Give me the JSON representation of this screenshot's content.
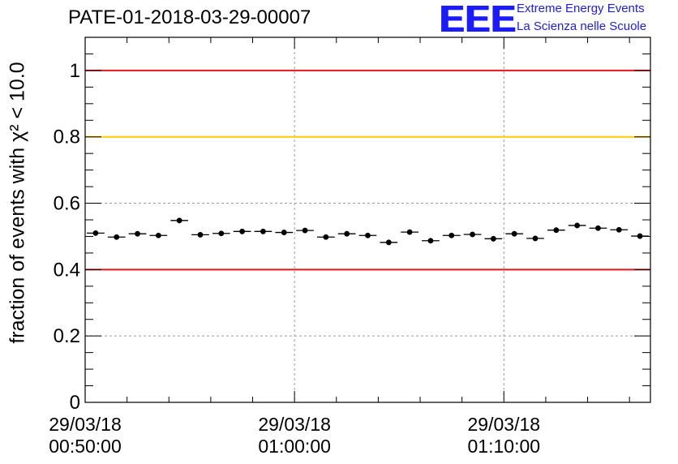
{
  "logo": {
    "mark": "EEE",
    "line1": "Extreme Energy Events",
    "line2": "La Scienza nelle Scuole"
  },
  "colors": {
    "red_line": "#e8141c",
    "yellow_line": "#ffcc00",
    "logo_blue": "#1b1bff",
    "grid": "#9a9a9a"
  },
  "chart_data": {
    "type": "scatter",
    "title": "PATE-01-2018-03-29-00007",
    "ylabel": "fraction of events with χ² < 10.0",
    "xlabel": "",
    "ylim": [
      0,
      1.1
    ],
    "y_ticks": [
      "0",
      "0.2",
      "0.4",
      "0.6",
      "0.8",
      "1"
    ],
    "y_tick_values": [
      0,
      0.2,
      0.4,
      0.6,
      0.8,
      1.0
    ],
    "x_range_minutes": [
      0,
      27
    ],
    "x_major_ticks": [
      {
        "minute": 0,
        "date": "29/03/18",
        "time": "00:50:00"
      },
      {
        "minute": 10,
        "date": "29/03/18",
        "time": "01:00:00"
      },
      {
        "minute": 20,
        "date": "29/03/18",
        "time": "01:10:00"
      }
    ],
    "grid": true,
    "reference_lines": [
      {
        "y": 1.0,
        "color": "#e8141c"
      },
      {
        "y": 0.8,
        "color": "#ffcc00"
      },
      {
        "y": 0.4,
        "color": "#e8141c"
      }
    ],
    "series": [
      {
        "values": [
          0.51,
          0.498,
          0.508,
          0.503,
          0.548,
          0.505,
          0.509,
          0.515,
          0.515,
          0.512,
          0.518,
          0.498,
          0.508,
          0.503,
          0.482,
          0.513,
          0.487,
          0.503,
          0.506,
          0.493,
          0.508,
          0.494,
          0.519,
          0.533,
          0.525,
          0.52,
          0.501
        ],
        "errors": [
          0.008,
          0.008,
          0.008,
          0.008,
          0.008,
          0.008,
          0.008,
          0.008,
          0.008,
          0.008,
          0.008,
          0.008,
          0.008,
          0.008,
          0.008,
          0.008,
          0.008,
          0.008,
          0.008,
          0.008,
          0.008,
          0.008,
          0.008,
          0.008,
          0.008,
          0.008,
          0.008
        ]
      }
    ]
  }
}
